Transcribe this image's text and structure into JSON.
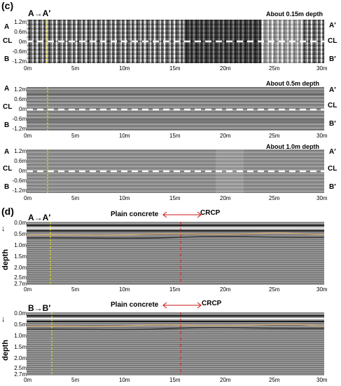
{
  "panel_c": {
    "letter": "(c)",
    "direction_label": "A→A′",
    "maps": [
      {
        "title": "About 0.15m depth",
        "y_ticks": [
          "1.2m",
          "0.6m",
          "0m",
          "-0.6m",
          "-1.2m"
        ],
        "side_left": [
          "A",
          "CL",
          "B"
        ],
        "side_right": [
          "A′",
          "CL",
          "B′"
        ]
      },
      {
        "title": "About 0.5m depth",
        "y_ticks": [
          "1.2m",
          "0.6m",
          "0m",
          "-0.6m",
          "-1.2m"
        ],
        "side_left": [
          "A",
          "CL",
          "B"
        ],
        "side_right": [
          "A′",
          "CL",
          "B′"
        ]
      },
      {
        "title": "About 1.0m depth",
        "y_ticks": [
          "1.2m",
          "0.6m",
          "0m",
          "-0.6m",
          "-1.2m"
        ],
        "side_left": [
          "A",
          "CL",
          "B"
        ],
        "side_right": [
          "A′",
          "CL",
          "B′"
        ]
      }
    ],
    "x_ticks": [
      "0m",
      "5m",
      "10m",
      "15m",
      "20m",
      "25m",
      "30m"
    ]
  },
  "panel_d": {
    "letter": "(d)",
    "profiles": [
      {
        "direction_label": "A→A′",
        "left_label": "Plain concrete",
        "right_label": "CRCP"
      },
      {
        "direction_label": "B→B′",
        "left_label": "Plain concrete",
        "right_label": "CRCP"
      }
    ],
    "y_label": "depth",
    "y_ticks": [
      "0.0m",
      "0.5m",
      "1.0m",
      "1.5m",
      "2.0m",
      "2.5m",
      "2.7m"
    ],
    "x_ticks": [
      "0m",
      "5m",
      "10m",
      "15m",
      "20m",
      "25m",
      "30m"
    ]
  },
  "colors": {
    "marker_line": "#e8e800",
    "boundary_line": "#d21414",
    "reflection": "#d8a86a",
    "centerline": "#ffffff"
  }
}
